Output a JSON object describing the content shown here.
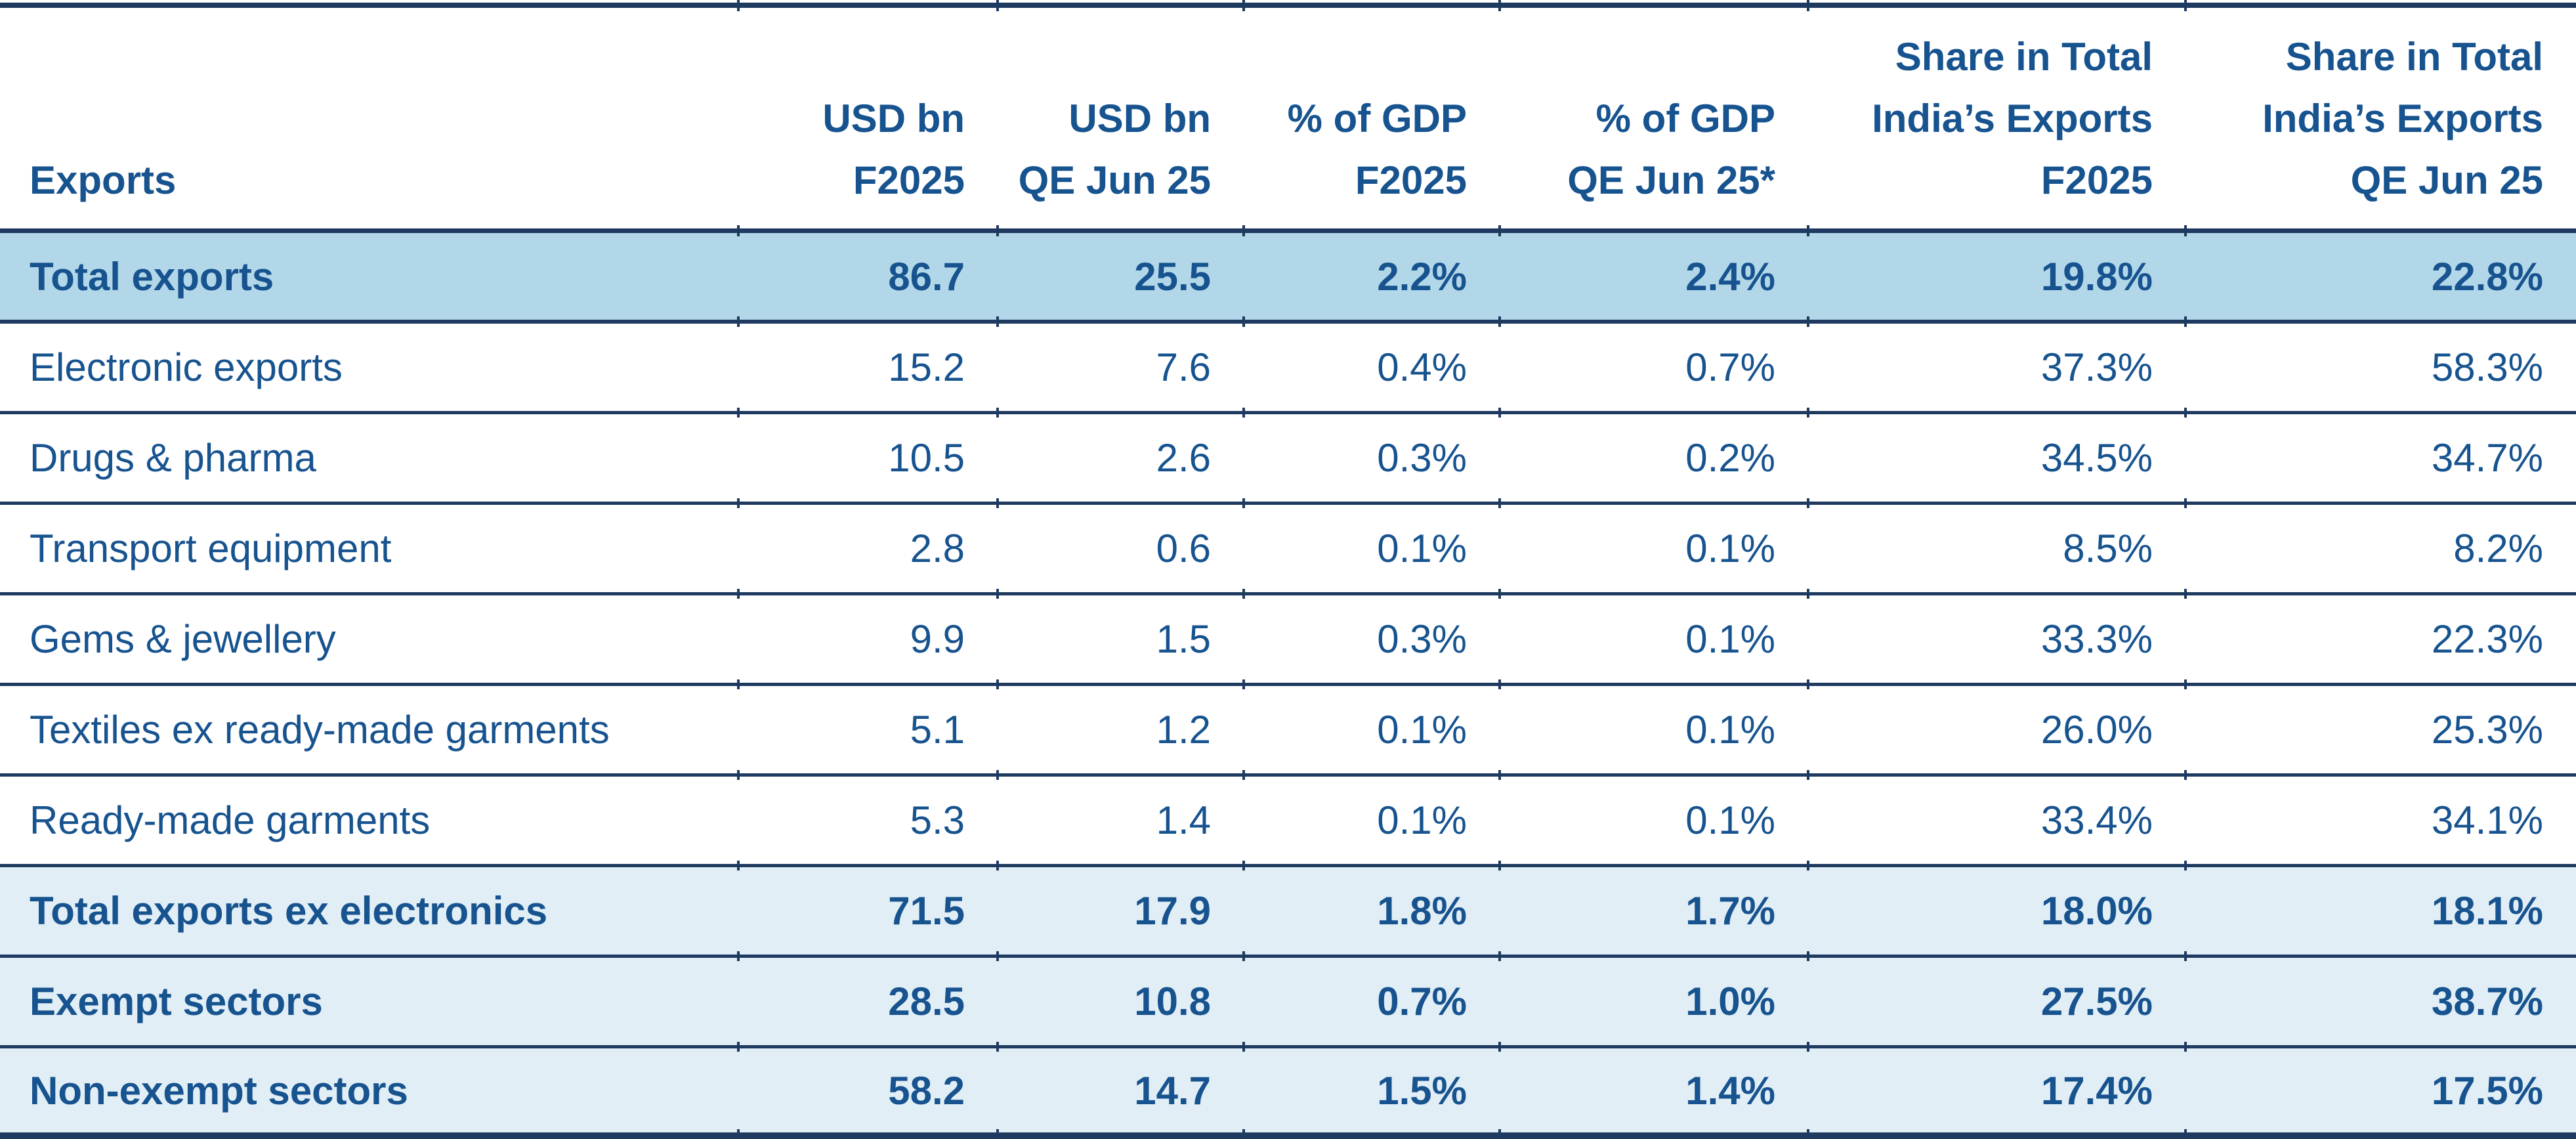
{
  "chart_data": {
    "type": "table",
    "corner_header": "Exports",
    "column_headers": [
      [
        "USD bn",
        "F2025"
      ],
      [
        "USD bn",
        "QE Jun 25"
      ],
      [
        "% of GDP",
        "F2025"
      ],
      [
        "% of GDP",
        "QE Jun 25*"
      ],
      [
        "Share in Total",
        "India’s Exports",
        "F2025"
      ],
      [
        "Share in Total",
        "India’s Exports",
        "QE Jun 25"
      ]
    ],
    "rows": [
      {
        "label": "Total exports",
        "values": [
          "86.7",
          "25.5",
          "2.2%",
          "2.4%",
          "19.8%",
          "22.8%"
        ],
        "emphasis": "bold",
        "background": "medium-blue"
      },
      {
        "label": "Electronic exports",
        "values": [
          "15.2",
          "7.6",
          "0.4%",
          "0.7%",
          "37.3%",
          "58.3%"
        ],
        "emphasis": "regular",
        "background": "white"
      },
      {
        "label": "Drugs & pharma",
        "values": [
          "10.5",
          "2.6",
          "0.3%",
          "0.2%",
          "34.5%",
          "34.7%"
        ],
        "emphasis": "regular",
        "background": "white"
      },
      {
        "label": "Transport equipment",
        "values": [
          "2.8",
          "0.6",
          "0.1%",
          "0.1%",
          "8.5%",
          "8.2%"
        ],
        "emphasis": "regular",
        "background": "white"
      },
      {
        "label": "Gems & jewellery",
        "values": [
          "9.9",
          "1.5",
          "0.3%",
          "0.1%",
          "33.3%",
          "22.3%"
        ],
        "emphasis": "regular",
        "background": "white"
      },
      {
        "label": "Textiles ex ready-made garments",
        "values": [
          "5.1",
          "1.2",
          "0.1%",
          "0.1%",
          "26.0%",
          "25.3%"
        ],
        "emphasis": "regular",
        "background": "white"
      },
      {
        "label": "Ready-made garments",
        "values": [
          "5.3",
          "1.4",
          "0.1%",
          "0.1%",
          "33.4%",
          "34.1%"
        ],
        "emphasis": "regular",
        "background": "white"
      },
      {
        "label": "Total exports ex electronics",
        "values": [
          "71.5",
          "17.9",
          "1.8%",
          "1.7%",
          "18.0%",
          "18.1%"
        ],
        "emphasis": "bold",
        "background": "light-blue"
      },
      {
        "label": "Exempt sectors",
        "values": [
          "28.5",
          "10.8",
          "0.7%",
          "1.0%",
          "27.5%",
          "38.7%"
        ],
        "emphasis": "bold",
        "background": "light-blue"
      },
      {
        "label": "Non-exempt sectors",
        "values": [
          "58.2",
          "14.7",
          "1.5%",
          "1.4%",
          "17.4%",
          "17.5%"
        ],
        "emphasis": "bold",
        "background": "light-blue"
      }
    ],
    "colors": {
      "text_blue": "#17538f",
      "border_navy": "#1f3a60",
      "row_highlight_medium": "#b2d7e8",
      "row_highlight_light": "#e1eef6"
    },
    "layout_hints": {
      "grid": "horizontal rules only, no vertical column lines",
      "value_alignment": "right",
      "label_alignment": "left"
    }
  }
}
